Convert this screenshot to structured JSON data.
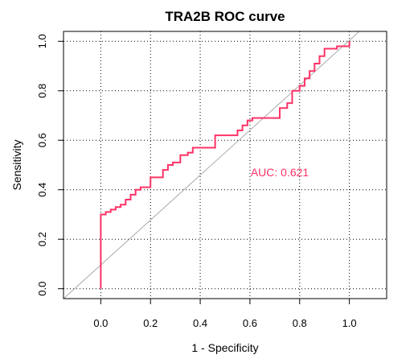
{
  "chart_data": {
    "type": "line",
    "title": "TRA2B ROC curve",
    "xlabel": "1 - Specificity",
    "ylabel": "Sensitivity",
    "xlim": [
      -0.15,
      1.15
    ],
    "ylim": [
      -0.04,
      1.04
    ],
    "x_ticks": [
      "0.0",
      "0.2",
      "0.4",
      "0.6",
      "0.8",
      "1.0"
    ],
    "y_ticks": [
      "0.0",
      "0.2",
      "0.4",
      "0.6",
      "0.8",
      "1.0"
    ],
    "grid": true,
    "grid_style": "dotted",
    "reference_line": {
      "from": [
        -0.15,
        -0.15
      ],
      "to": [
        1.15,
        1.15
      ],
      "color": "#aaaaaa"
    },
    "annotation": {
      "text": "AUC: 0.621",
      "x": 0.72,
      "y": 0.47
    },
    "series": [
      {
        "color": "#ff3366",
        "x": [
          0.0,
          0.0,
          0.02,
          0.02,
          0.04,
          0.04,
          0.06,
          0.06,
          0.08,
          0.08,
          0.1,
          0.1,
          0.12,
          0.12,
          0.14,
          0.14,
          0.16,
          0.16,
          0.2,
          0.2,
          0.25,
          0.25,
          0.27,
          0.27,
          0.29,
          0.29,
          0.32,
          0.32,
          0.35,
          0.35,
          0.37,
          0.37,
          0.46,
          0.46,
          0.55,
          0.55,
          0.57,
          0.57,
          0.59,
          0.59,
          0.61,
          0.61,
          0.72,
          0.72,
          0.75,
          0.75,
          0.77,
          0.77,
          0.8,
          0.8,
          0.82,
          0.82,
          0.84,
          0.84,
          0.86,
          0.86,
          0.88,
          0.88,
          0.9,
          0.9,
          0.95,
          0.95,
          1.0,
          1.0
        ],
        "y": [
          0.0,
          0.3,
          0.3,
          0.31,
          0.31,
          0.32,
          0.32,
          0.33,
          0.33,
          0.34,
          0.34,
          0.36,
          0.36,
          0.38,
          0.38,
          0.4,
          0.4,
          0.41,
          0.41,
          0.45,
          0.45,
          0.48,
          0.48,
          0.5,
          0.5,
          0.51,
          0.51,
          0.54,
          0.54,
          0.55,
          0.55,
          0.57,
          0.57,
          0.62,
          0.62,
          0.64,
          0.64,
          0.66,
          0.66,
          0.68,
          0.68,
          0.69,
          0.69,
          0.73,
          0.73,
          0.75,
          0.75,
          0.8,
          0.8,
          0.82,
          0.82,
          0.85,
          0.85,
          0.88,
          0.88,
          0.91,
          0.91,
          0.94,
          0.94,
          0.97,
          0.97,
          0.98,
          0.98,
          1.0
        ]
      }
    ]
  }
}
